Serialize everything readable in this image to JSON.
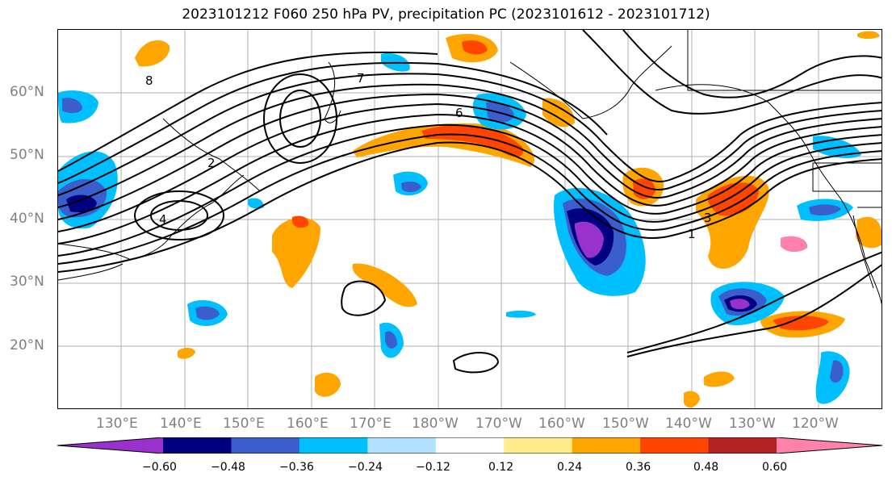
{
  "title": "2023101212 F060 250 hPa PV, precipitation PC (2023101612 - 2023101712)",
  "map": {
    "lat_labels": [
      "60°N",
      "50°N",
      "40°N",
      "30°N",
      "20°N"
    ],
    "lon_labels": [
      "130°E",
      "140°E",
      "150°E",
      "160°E",
      "170°E",
      "180°W",
      "170°W",
      "160°W",
      "150°W",
      "140°W",
      "130°W",
      "120°W"
    ],
    "contour_labels": [
      "8",
      "7",
      "6",
      "4",
      "3",
      "2",
      "1"
    ],
    "gridlines": true
  },
  "colorbar": {
    "colors": [
      "#9932cc",
      "#000080",
      "#3a5fcd",
      "#00bfff",
      "#b0e2ff",
      "#ffffff",
      "#ffec8b",
      "#ffa500",
      "#ff4500",
      "#b22222",
      "#ff82ab"
    ],
    "tick_labels": [
      "−0.60",
      "−0.48",
      "−0.36",
      "−0.24",
      "−0.12",
      "0.12",
      "0.24",
      "0.36",
      "0.48",
      "0.60"
    ]
  }
}
